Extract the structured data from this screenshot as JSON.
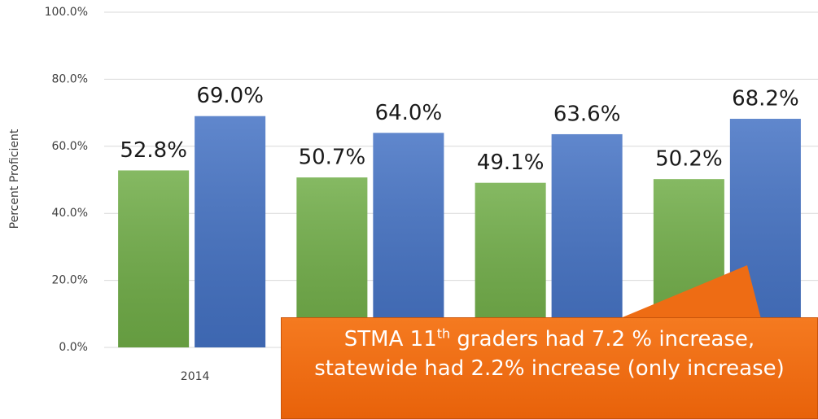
{
  "chart_data": {
    "type": "bar",
    "y_axis_label": "Percent Proficient",
    "categories": [
      "2014",
      null,
      null,
      null
    ],
    "series": [
      {
        "color": "#70ad47",
        "values": [
          52.8,
          50.7,
          49.1,
          50.2
        ],
        "value_labels": [
          "52.8%",
          "50.7%",
          "49.1%",
          "50.2%"
        ]
      },
      {
        "color": "#4472c4",
        "values": [
          69.0,
          64.0,
          63.6,
          68.2
        ],
        "value_labels": [
          "69.0%",
          "64.0%",
          "63.6%",
          "68.2%"
        ]
      }
    ],
    "ylim": [
      0,
      100
    ],
    "yticks": [
      {
        "value": 0,
        "label": "0.0%"
      },
      {
        "value": 20,
        "label": "20.0%"
      },
      {
        "value": 40,
        "label": "40.0%"
      },
      {
        "value": 60,
        "label": "60.0%"
      },
      {
        "value": 80,
        "label": "80.0%"
      },
      {
        "value": 100,
        "label": "100.0%"
      }
    ],
    "grid": true,
    "annotation": [
      "STMA 11",
      "th",
      " graders had 7.2 % increase, statewide had 2.2% increase (only increase)"
    ]
  }
}
